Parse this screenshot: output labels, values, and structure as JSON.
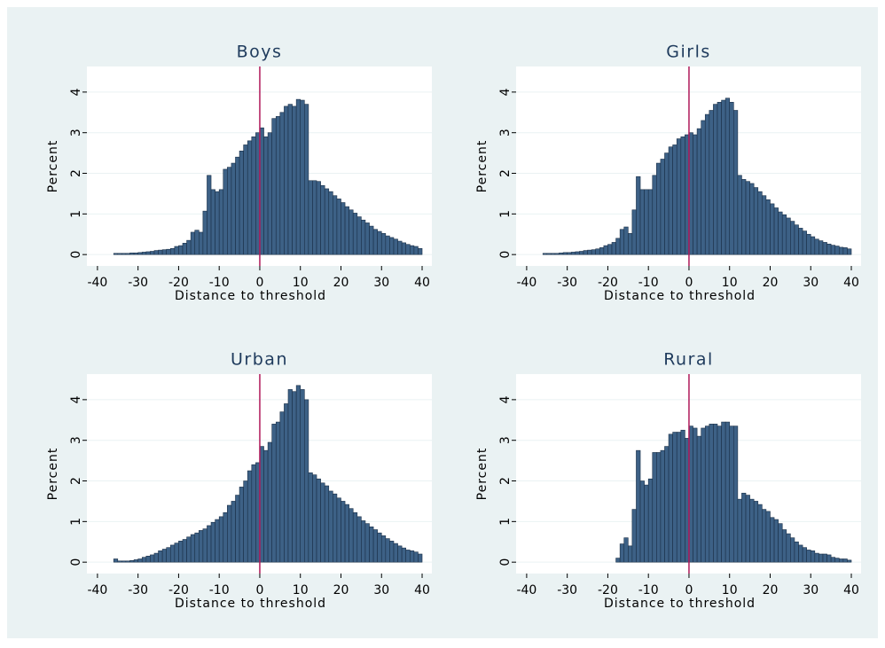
{
  "chart_data": [
    {
      "type": "histogram",
      "title": "Boys",
      "xlabel": "Distance to threshold",
      "ylabel": "Percent",
      "color": "#3d6186",
      "xline": 0,
      "xline_color": "#b0185a",
      "bins": [
        -36,
        -35,
        -34,
        -33,
        -32,
        -31,
        -30,
        -29,
        -28,
        -27,
        -26,
        -25,
        -24,
        -23,
        -22,
        -21,
        -20,
        -19,
        -18,
        -17,
        -16,
        -15,
        -14,
        -13,
        -12,
        -11,
        -10,
        -9,
        -8,
        -7,
        -6,
        -5,
        -4,
        -3,
        -2,
        -1,
        0,
        1,
        2,
        3,
        4,
        5,
        6,
        7,
        8,
        9,
        10,
        11,
        12,
        13,
        14,
        15,
        16,
        17,
        18,
        19,
        20,
        21,
        22,
        23,
        24,
        25,
        26,
        27,
        28,
        29,
        30,
        31,
        32,
        33,
        34,
        35,
        36,
        37,
        38,
        39,
        40
      ],
      "values": [
        0.03,
        0.03,
        0.03,
        0.03,
        0.04,
        0.04,
        0.05,
        0.06,
        0.07,
        0.08,
        0.1,
        0.11,
        0.12,
        0.13,
        0.15,
        0.2,
        0.22,
        0.28,
        0.35,
        0.55,
        0.6,
        0.55,
        1.07,
        1.95,
        1.6,
        1.55,
        1.6,
        2.1,
        2.15,
        2.25,
        2.4,
        2.55,
        2.7,
        2.8,
        2.9,
        3.0,
        3.12,
        2.9,
        3.0,
        3.35,
        3.4,
        3.5,
        3.65,
        3.7,
        3.65,
        3.82,
        3.8,
        3.7,
        1.82,
        1.82,
        1.8,
        1.7,
        1.62,
        1.55,
        1.45,
        1.37,
        1.28,
        1.18,
        1.1,
        1.02,
        0.93,
        0.85,
        0.78,
        0.7,
        0.62,
        0.57,
        0.52,
        0.46,
        0.42,
        0.38,
        0.33,
        0.29,
        0.25,
        0.22,
        0.2,
        0.15
      ],
      "xlim": [
        -42.6,
        42.4
      ],
      "ylim": [
        -0.28,
        4.63
      ],
      "xticks": [
        -40,
        -30,
        -20,
        -10,
        0,
        10,
        20,
        30,
        40
      ],
      "yticks": [
        0,
        1,
        2,
        3,
        4
      ],
      "grid": true
    },
    {
      "type": "histogram",
      "title": "Girls",
      "xlabel": "Distance to threshold",
      "ylabel": "Percent",
      "color": "#3d6186",
      "xline": 0,
      "xline_color": "#b0185a",
      "bins": [
        -36,
        -35,
        -34,
        -33,
        -32,
        -31,
        -30,
        -29,
        -28,
        -27,
        -26,
        -25,
        -24,
        -23,
        -22,
        -21,
        -20,
        -19,
        -18,
        -17,
        -16,
        -15,
        -14,
        -13,
        -12,
        -11,
        -10,
        -9,
        -8,
        -7,
        -6,
        -5,
        -4,
        -3,
        -2,
        -1,
        0,
        1,
        2,
        3,
        4,
        5,
        6,
        7,
        8,
        9,
        10,
        11,
        12,
        13,
        14,
        15,
        16,
        17,
        18,
        19,
        20,
        21,
        22,
        23,
        24,
        25,
        26,
        27,
        28,
        29,
        30,
        31,
        32,
        33,
        34,
        35,
        36,
        37,
        38,
        39,
        40
      ],
      "values": [
        0.03,
        0.03,
        0.03,
        0.03,
        0.04,
        0.05,
        0.05,
        0.06,
        0.07,
        0.08,
        0.1,
        0.11,
        0.12,
        0.14,
        0.17,
        0.22,
        0.25,
        0.3,
        0.4,
        0.62,
        0.68,
        0.52,
        1.1,
        1.92,
        1.6,
        1.6,
        1.6,
        1.95,
        2.25,
        2.35,
        2.5,
        2.65,
        2.7,
        2.85,
        2.9,
        2.95,
        3.0,
        2.95,
        3.1,
        3.3,
        3.45,
        3.55,
        3.7,
        3.75,
        3.8,
        3.85,
        3.75,
        3.55,
        1.95,
        1.85,
        1.8,
        1.75,
        1.65,
        1.55,
        1.45,
        1.35,
        1.25,
        1.15,
        1.05,
        0.98,
        0.9,
        0.82,
        0.73,
        0.65,
        0.58,
        0.5,
        0.44,
        0.38,
        0.34,
        0.3,
        0.26,
        0.23,
        0.21,
        0.18,
        0.17,
        0.14
      ],
      "xlim": [
        -42.6,
        42.4
      ],
      "ylim": [
        -0.28,
        4.63
      ],
      "xticks": [
        -40,
        -30,
        -20,
        -10,
        0,
        10,
        20,
        30,
        40
      ],
      "yticks": [
        0,
        1,
        2,
        3,
        4
      ],
      "grid": true
    },
    {
      "type": "histogram",
      "title": "Urban",
      "xlabel": "Distance to threshold",
      "ylabel": "Percent",
      "color": "#3d6186",
      "xline": 0,
      "xline_color": "#b0185a",
      "bins": [
        -36,
        -35,
        -34,
        -33,
        -32,
        -31,
        -30,
        -29,
        -28,
        -27,
        -26,
        -25,
        -24,
        -23,
        -22,
        -21,
        -20,
        -19,
        -18,
        -17,
        -16,
        -15,
        -14,
        -13,
        -12,
        -11,
        -10,
        -9,
        -8,
        -7,
        -6,
        -5,
        -4,
        -3,
        -2,
        -1,
        0,
        1,
        2,
        3,
        4,
        5,
        6,
        7,
        8,
        9,
        10,
        11,
        12,
        13,
        14,
        15,
        16,
        17,
        18,
        19,
        20,
        21,
        22,
        23,
        24,
        25,
        26,
        27,
        28,
        29,
        30,
        31,
        32,
        33,
        34,
        35,
        36,
        37,
        38,
        39,
        40
      ],
      "values": [
        0.08,
        0.03,
        0.03,
        0.03,
        0.04,
        0.06,
        0.08,
        0.12,
        0.15,
        0.18,
        0.22,
        0.28,
        0.32,
        0.36,
        0.42,
        0.47,
        0.52,
        0.56,
        0.62,
        0.68,
        0.72,
        0.78,
        0.82,
        0.9,
        0.98,
        1.05,
        1.12,
        1.22,
        1.4,
        1.5,
        1.65,
        1.85,
        2.0,
        2.25,
        2.4,
        2.45,
        2.85,
        2.75,
        2.95,
        3.4,
        3.45,
        3.7,
        3.9,
        4.25,
        4.2,
        4.35,
        4.25,
        4.0,
        2.2,
        2.15,
        2.05,
        1.95,
        1.88,
        1.75,
        1.68,
        1.58,
        1.5,
        1.42,
        1.32,
        1.22,
        1.12,
        1.02,
        0.95,
        0.87,
        0.8,
        0.72,
        0.65,
        0.58,
        0.52,
        0.46,
        0.4,
        0.35,
        0.3,
        0.28,
        0.25,
        0.2
      ],
      "xlim": [
        -42.6,
        42.4
      ],
      "ylim": [
        -0.28,
        4.63
      ],
      "xticks": [
        -40,
        -30,
        -20,
        -10,
        0,
        10,
        20,
        30,
        40
      ],
      "yticks": [
        0,
        1,
        2,
        3,
        4
      ],
      "grid": true
    },
    {
      "type": "histogram",
      "title": "Rural",
      "xlabel": "Distance to threshold",
      "ylabel": "Percent",
      "color": "#3d6186",
      "xline": 0,
      "xline_color": "#b0185a",
      "bins": [
        -36,
        -35,
        -34,
        -33,
        -32,
        -31,
        -30,
        -29,
        -28,
        -27,
        -26,
        -25,
        -24,
        -23,
        -22,
        -21,
        -20,
        -19,
        -18,
        -17,
        -16,
        -15,
        -14,
        -13,
        -12,
        -11,
        -10,
        -9,
        -8,
        -7,
        -6,
        -5,
        -4,
        -3,
        -2,
        -1,
        0,
        1,
        2,
        3,
        4,
        5,
        6,
        7,
        8,
        9,
        10,
        11,
        12,
        13,
        14,
        15,
        16,
        17,
        18,
        19,
        20,
        21,
        22,
        23,
        24,
        25,
        26,
        27,
        28,
        29,
        30,
        31,
        32,
        33,
        34,
        35,
        36,
        37,
        38,
        39,
        40
      ],
      "values": [
        0,
        0,
        0,
        0,
        0,
        0,
        0,
        0,
        0,
        0,
        0,
        0,
        0,
        0,
        0,
        0,
        0,
        0,
        0.1,
        0.45,
        0.6,
        0.4,
        1.3,
        2.75,
        2.0,
        1.9,
        2.05,
        2.7,
        2.7,
        2.75,
        2.85,
        3.15,
        3.2,
        3.2,
        3.25,
        3.05,
        3.35,
        3.3,
        3.1,
        3.3,
        3.35,
        3.4,
        3.4,
        3.35,
        3.45,
        3.45,
        3.35,
        3.35,
        1.55,
        1.7,
        1.65,
        1.55,
        1.5,
        1.42,
        1.3,
        1.25,
        1.1,
        1.05,
        0.95,
        0.8,
        0.7,
        0.6,
        0.5,
        0.42,
        0.36,
        0.3,
        0.28,
        0.22,
        0.2,
        0.2,
        0.18,
        0.12,
        0.1,
        0.08,
        0.08,
        0.05
      ],
      "xlim": [
        -42.6,
        42.4
      ],
      "ylim": [
        -0.28,
        4.63
      ],
      "xticks": [
        -40,
        -30,
        -20,
        -10,
        0,
        10,
        20,
        30,
        40
      ],
      "yticks": [
        0,
        1,
        2,
        3,
        4
      ],
      "grid": true
    }
  ]
}
